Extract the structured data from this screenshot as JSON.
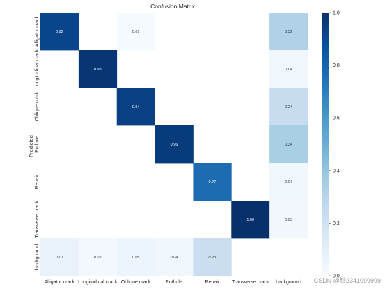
{
  "chart_data": {
    "type": "heatmap",
    "title": "Confusion Matrix",
    "ylabel": "Predicted",
    "xlabel": "",
    "x_categories": [
      "Alligator crack",
      "Longitudinal crack",
      "Oblique crack",
      "Pothole",
      "Repair",
      "Transverse crack",
      "background"
    ],
    "y_categories": [
      "Alligator crack",
      "Longitudinal crack",
      "Oblique crack",
      "Pothole",
      "Repair",
      "Transverse crack",
      "background"
    ],
    "values": [
      [
        0.92,
        null,
        0.01,
        null,
        null,
        null,
        0.32
      ],
      [
        null,
        0.98,
        null,
        null,
        null,
        null,
        0.04
      ],
      [
        null,
        null,
        0.94,
        null,
        null,
        null,
        0.24
      ],
      [
        null,
        null,
        null,
        0.96,
        null,
        null,
        0.34
      ],
      [
        null,
        null,
        null,
        null,
        0.77,
        null,
        0.04
      ],
      [
        null,
        null,
        null,
        null,
        null,
        1.0,
        0.03
      ],
      [
        0.07,
        0.02,
        0.05,
        0.04,
        0.23,
        null,
        null
      ]
    ],
    "value_range": [
      0,
      1
    ],
    "colorbar_ticks": [
      "0.0",
      "0.2",
      "0.4",
      "0.6",
      "0.8",
      "1.0"
    ],
    "colormap": [
      "#f7fbff",
      "#deebf7",
      "#c6dbef",
      "#9ecae1",
      "#6baed6",
      "#4292c6",
      "#2171b5",
      "#08519c",
      "#08306b"
    ],
    "grid": false
  },
  "watermark": "CSDN @钟2341099999"
}
